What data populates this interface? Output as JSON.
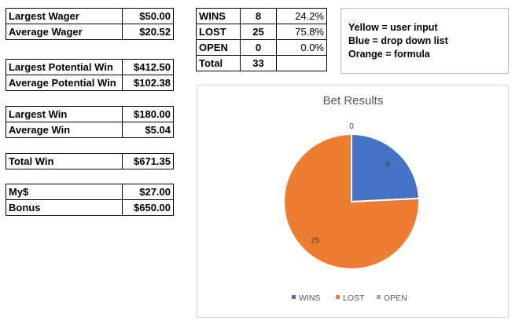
{
  "wager_stats": {
    "rows": [
      {
        "label": "Largest Wager",
        "value": "$50.00"
      },
      {
        "label": "Average Wager",
        "value": "$20.52"
      }
    ]
  },
  "potential_win_stats": {
    "rows": [
      {
        "label": "Largest Potential Win",
        "value": "$412.50"
      },
      {
        "label": "Average Potential Win",
        "value": "$102.38"
      }
    ]
  },
  "win_stats": {
    "rows": [
      {
        "label": "Largest Win",
        "value": "$180.00"
      },
      {
        "label": "Average Win",
        "value": "$5.04"
      }
    ]
  },
  "total_win": {
    "label": "Total Win",
    "value": "$671.35"
  },
  "balance_stats": {
    "rows": [
      {
        "label": "My$",
        "value": "$27.00"
      },
      {
        "label": "Bonus",
        "value": "$650.00"
      }
    ]
  },
  "results_table": {
    "rows": [
      {
        "label": "WINS",
        "count": "8",
        "percent": "24.2%"
      },
      {
        "label": "LOST",
        "count": "25",
        "percent": "75.8%"
      },
      {
        "label": "OPEN",
        "count": "0",
        "percent": "0.0%"
      },
      {
        "label": "Total",
        "count": "33",
        "percent": ""
      }
    ]
  },
  "color_legend": {
    "lines": [
      "Yellow = user input",
      "Blue = drop down list",
      "Orange = formula"
    ]
  },
  "chart_data": {
    "type": "pie",
    "title": "Bet Results",
    "categories": [
      "WINS",
      "LOST",
      "OPEN"
    ],
    "values": [
      8,
      25,
      0
    ],
    "colors": [
      "#4472c4",
      "#ed7d31",
      "#a5a5a5"
    ],
    "data_labels": [
      "8",
      "25",
      "0"
    ],
    "legend_position": "bottom"
  }
}
